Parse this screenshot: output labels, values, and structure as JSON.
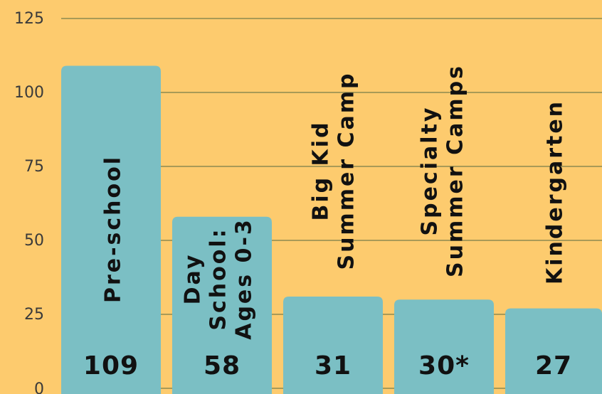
{
  "chart_data": {
    "type": "bar",
    "categories": [
      [
        "Pre-school"
      ],
      [
        "Day",
        "School:",
        "Ages 0-3"
      ],
      [
        "Big Kid",
        "Summer Camp"
      ],
      [
        "Specialty",
        "Summer Camps"
      ],
      [
        "Kindergarten"
      ]
    ],
    "values": [
      109,
      58,
      31,
      30,
      27
    ],
    "value_labels": [
      "109",
      "58",
      "31",
      "30*",
      "27"
    ],
    "yticks": [
      "0",
      "25",
      "50",
      "75",
      "100",
      "125"
    ],
    "ylim": [
      0,
      125
    ],
    "grid": true,
    "colors": {
      "background": "#FDCB6E",
      "bar": "#7BBFC4",
      "grid": "#A99A57",
      "text": "#111111"
    }
  }
}
